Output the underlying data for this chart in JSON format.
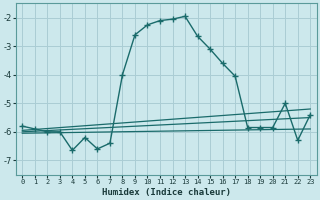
{
  "xlabel": "Humidex (Indice chaleur)",
  "bg_color": "#cce8ec",
  "grid_color": "#aacdd4",
  "line_color": "#1a6b6b",
  "xlim": [
    -0.5,
    23.5
  ],
  "ylim": [
    -7.5,
    -1.5
  ],
  "yticks": [
    -7,
    -6,
    -5,
    -4,
    -3,
    -2
  ],
  "xticks": [
    0,
    1,
    2,
    3,
    4,
    5,
    6,
    7,
    8,
    9,
    10,
    11,
    12,
    13,
    14,
    15,
    16,
    17,
    18,
    19,
    20,
    21,
    22,
    23
  ],
  "series": [
    {
      "x": [
        0,
        1,
        2,
        3,
        4,
        5,
        6,
        7,
        8,
        9,
        10,
        11,
        12,
        13,
        14,
        15,
        16,
        17,
        18,
        19,
        20,
        21,
        22,
        23
      ],
      "y": [
        -5.8,
        -5.9,
        -6.0,
        -6.0,
        -6.65,
        -6.2,
        -6.6,
        -6.4,
        -4.0,
        -2.6,
        -2.25,
        -2.1,
        -2.05,
        -1.95,
        -2.65,
        -3.1,
        -3.6,
        -4.05,
        -5.85,
        -5.85,
        -5.85,
        -5.0,
        -6.3,
        -5.4
      ],
      "marker": true,
      "lw": 1.0
    },
    {
      "x": [
        0,
        23
      ],
      "y": [
        -5.95,
        -5.2
      ],
      "marker": false,
      "lw": 0.9
    },
    {
      "x": [
        0,
        23
      ],
      "y": [
        -6.0,
        -5.5
      ],
      "marker": false,
      "lw": 0.9
    },
    {
      "x": [
        0,
        23
      ],
      "y": [
        -6.05,
        -5.9
      ],
      "marker": false,
      "lw": 0.9
    }
  ]
}
